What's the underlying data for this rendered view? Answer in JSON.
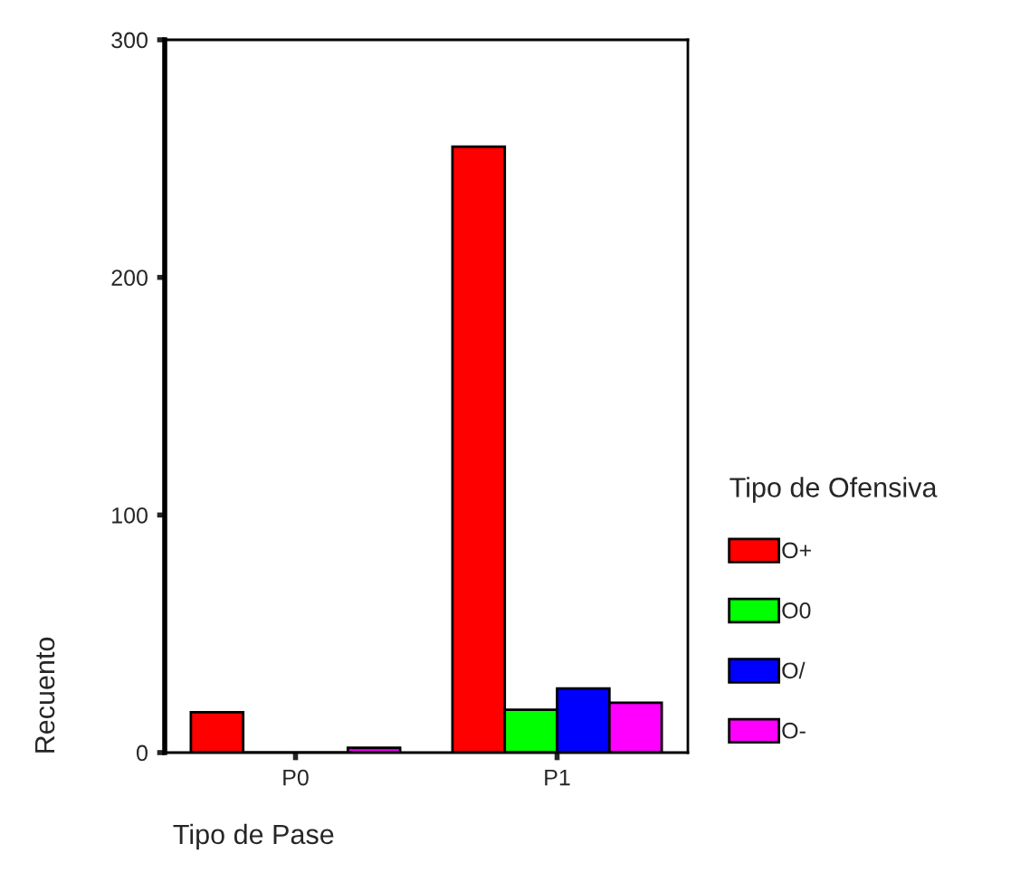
{
  "chart_data": {
    "type": "bar",
    "categories": [
      "P0",
      "P1"
    ],
    "xlabel": "Tipo de Pase",
    "ylabel": "Recuento",
    "legend_title": "Tipo de Ofensiva",
    "series": [
      {
        "name": "O+",
        "color": "#ff0000",
        "values": [
          17,
          255
        ]
      },
      {
        "name": "O0",
        "color": "#00ff00",
        "values": [
          null,
          18
        ]
      },
      {
        "name": "O/",
        "color": "#0000ff",
        "values": [
          0,
          27
        ]
      },
      {
        "name": "O-",
        "color": "#ff00ff",
        "values": [
          2,
          21
        ]
      }
    ],
    "ylim": [
      0,
      300
    ],
    "yticks": [
      0,
      100,
      200,
      300
    ],
    "grid": false,
    "legend": "right"
  }
}
